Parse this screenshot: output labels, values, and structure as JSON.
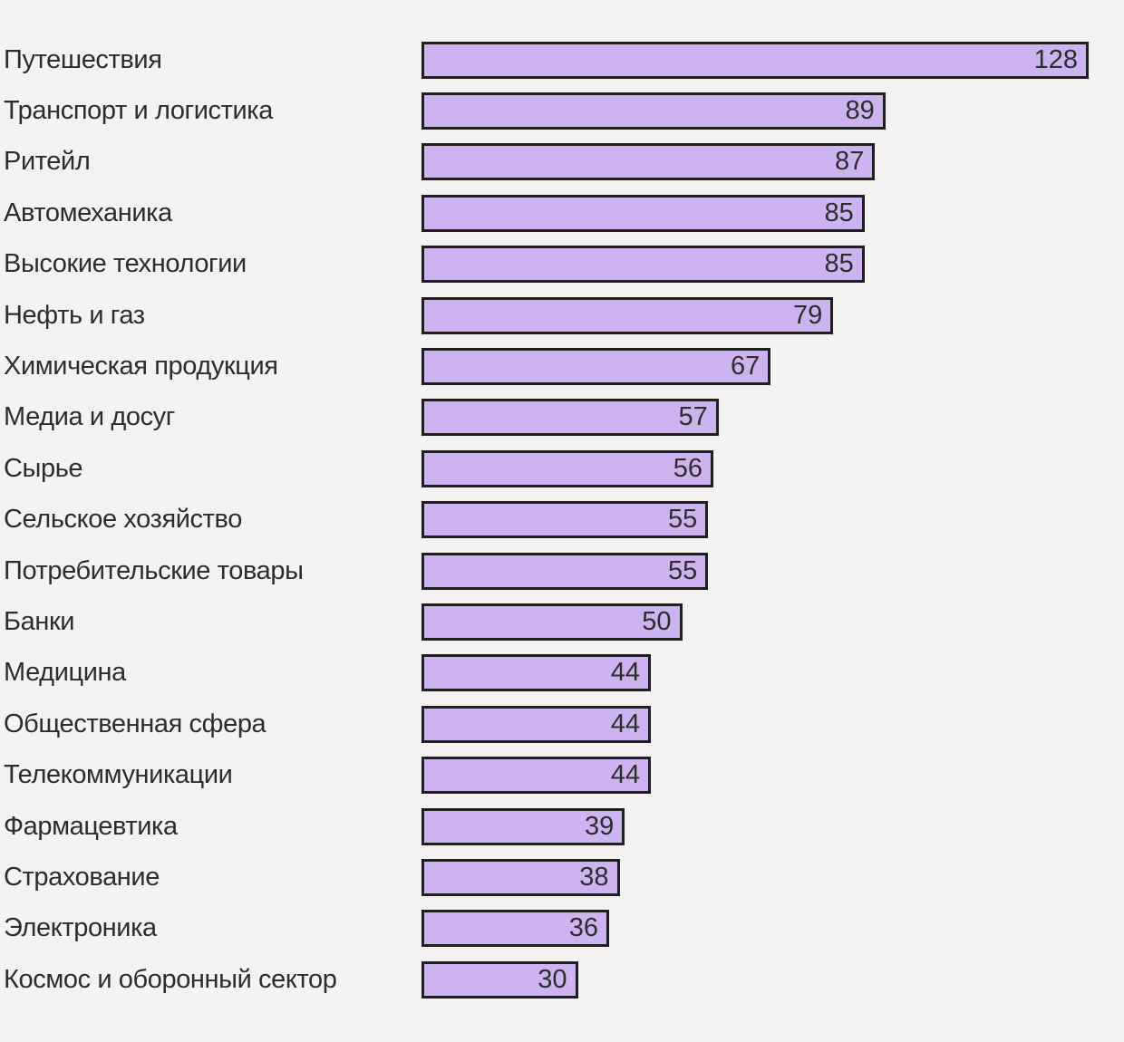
{
  "background_color": "#f4f3f1",
  "chart_data": {
    "type": "bar",
    "orientation": "horizontal",
    "categories": [
      "Путешествия",
      "Транспорт и логистика",
      "Ритейл",
      "Автомеханика",
      "Высокие технологии",
      "Нефть и газ",
      "Химическая продукция",
      "Медиа и досуг",
      "Сырье",
      "Сельское хозяйство",
      "Потребительские товары",
      "Банки",
      "Медицина",
      "Общественная сфера",
      "Телекоммуникации",
      "Фармацевтика",
      "Страхование",
      "Электроника",
      "Космос и оборонный сектор"
    ],
    "values": [
      128,
      89,
      87,
      85,
      85,
      79,
      67,
      57,
      56,
      55,
      55,
      50,
      44,
      44,
      44,
      39,
      38,
      36,
      30
    ],
    "xlim": [
      0,
      128
    ],
    "grid": false,
    "legend": false,
    "bar_color": "#cdb4f1",
    "bar_border_color": "#1f1f1f",
    "text_color": "#2d2d2d",
    "value_label_position": "inside-right"
  }
}
